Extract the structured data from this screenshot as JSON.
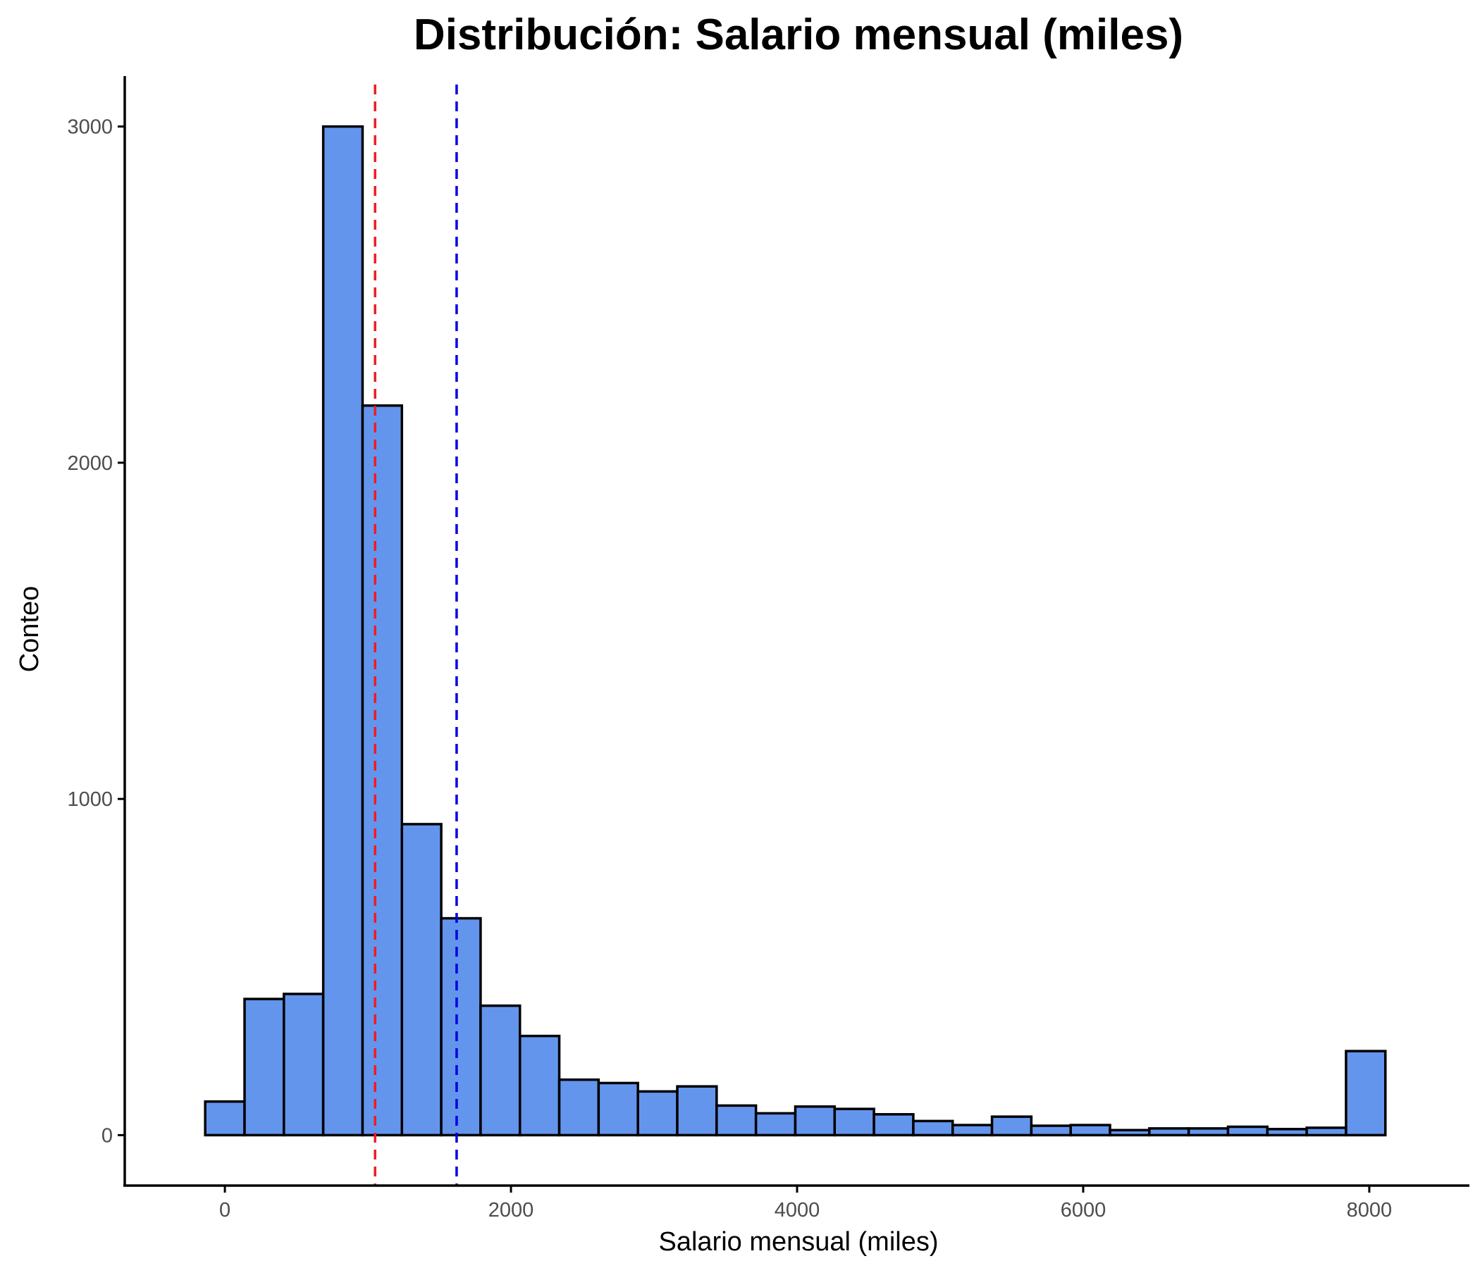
{
  "chart_data": {
    "type": "bar",
    "title": "Distribución: Salario mensual (miles)",
    "xlabel": "Salario mensual (miles)",
    "ylabel": "Conteo",
    "xlim": [
      -700,
      8700
    ],
    "ylim": [
      -150,
      3150
    ],
    "x_ticks": [
      0,
      2000,
      4000,
      6000,
      8000
    ],
    "y_ticks": [
      0,
      1000,
      2000,
      3000
    ],
    "bin_width": 275,
    "bins": [
      {
        "start": -137.5,
        "end": 137.5,
        "count": 100
      },
      {
        "start": 137.5,
        "end": 412.5,
        "count": 405
      },
      {
        "start": 412.5,
        "end": 687.5,
        "count": 420
      },
      {
        "start": 687.5,
        "end": 962.5,
        "count": 3000
      },
      {
        "start": 962.5,
        "end": 1237.5,
        "count": 2170
      },
      {
        "start": 1237.5,
        "end": 1512.5,
        "count": 925
      },
      {
        "start": 1512.5,
        "end": 1787.5,
        "count": 645
      },
      {
        "start": 1787.5,
        "end": 2062.5,
        "count": 385
      },
      {
        "start": 2062.5,
        "end": 2337.5,
        "count": 295
      },
      {
        "start": 2337.5,
        "end": 2612.5,
        "count": 165
      },
      {
        "start": 2612.5,
        "end": 2887.5,
        "count": 155
      },
      {
        "start": 2887.5,
        "end": 3162.5,
        "count": 130
      },
      {
        "start": 3162.5,
        "end": 3437.5,
        "count": 145
      },
      {
        "start": 3437.5,
        "end": 3712.5,
        "count": 88
      },
      {
        "start": 3712.5,
        "end": 3987.5,
        "count": 65
      },
      {
        "start": 3987.5,
        "end": 4262.5,
        "count": 85
      },
      {
        "start": 4262.5,
        "end": 4537.5,
        "count": 78
      },
      {
        "start": 4537.5,
        "end": 4812.5,
        "count": 62
      },
      {
        "start": 4812.5,
        "end": 5087.5,
        "count": 42
      },
      {
        "start": 5087.5,
        "end": 5362.5,
        "count": 30
      },
      {
        "start": 5362.5,
        "end": 5637.5,
        "count": 55
      },
      {
        "start": 5637.5,
        "end": 5912.5,
        "count": 28
      },
      {
        "start": 5912.5,
        "end": 6187.5,
        "count": 30
      },
      {
        "start": 6187.5,
        "end": 6462.5,
        "count": 15
      },
      {
        "start": 6462.5,
        "end": 6737.5,
        "count": 20
      },
      {
        "start": 6737.5,
        "end": 7012.5,
        "count": 20
      },
      {
        "start": 7012.5,
        "end": 7287.5,
        "count": 25
      },
      {
        "start": 7287.5,
        "end": 7562.5,
        "count": 18
      },
      {
        "start": 7562.5,
        "end": 7837.5,
        "count": 22
      },
      {
        "start": 7837.5,
        "end": 8112.5,
        "count": 250
      }
    ],
    "reference_lines": [
      {
        "x": 1050,
        "color": "#ee1c25"
      },
      {
        "x": 1620,
        "color": "#0000dd"
      }
    ],
    "bar_fill": "#6495ed",
    "bar_edge": "#000000",
    "grid": false,
    "legend": "none"
  }
}
